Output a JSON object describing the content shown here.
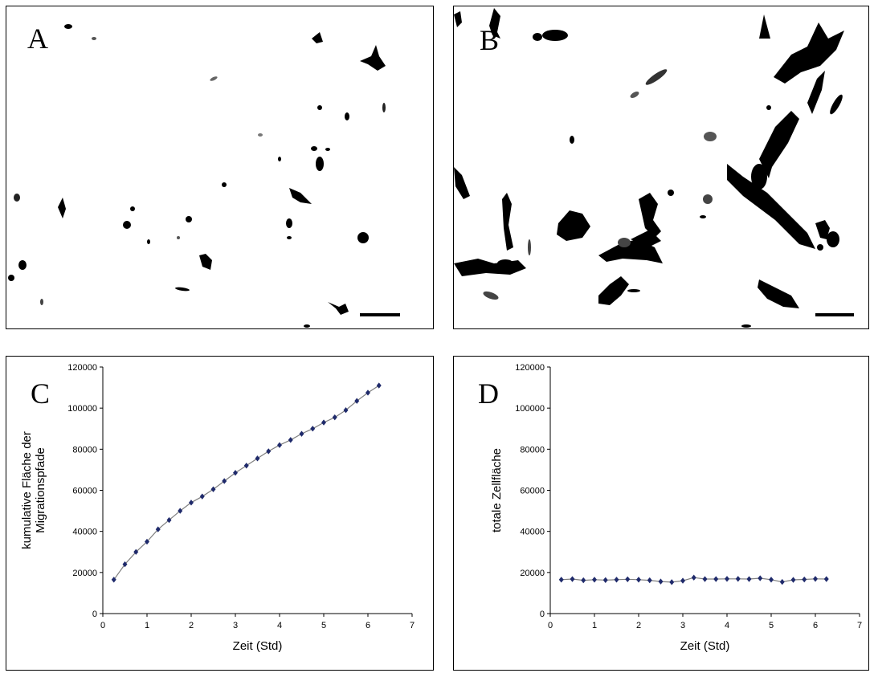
{
  "panels": {
    "A": {
      "letter": "A",
      "kind": "micrograph",
      "content": "sparse cells"
    },
    "B": {
      "letter": "B",
      "kind": "micrograph",
      "content": "cumulative migration paths"
    },
    "C": {
      "letter": "C"
    },
    "D": {
      "letter": "D"
    }
  },
  "chart_data": [
    {
      "panel": "C",
      "type": "line",
      "title": "",
      "xlabel": "Zeit (Std)",
      "ylabel_lines": [
        "kumulative Fläche der",
        "Migrationspfade"
      ],
      "xlim": [
        0,
        7
      ],
      "ylim": [
        0,
        120000
      ],
      "xticks": [
        0,
        1,
        2,
        3,
        4,
        5,
        6,
        7
      ],
      "yticks": [
        0,
        20000,
        40000,
        60000,
        80000,
        100000,
        120000
      ],
      "grid": false,
      "series": [
        {
          "line_color": "#7f7f7f",
          "marker_color": "#1f2a6b",
          "x": [
            0.25,
            0.5,
            0.75,
            1.0,
            1.25,
            1.5,
            1.75,
            2.0,
            2.25,
            2.5,
            2.75,
            3.0,
            3.25,
            3.5,
            3.75,
            4.0,
            4.25,
            4.5,
            4.75,
            5.0,
            5.25,
            5.5,
            5.75,
            6.0,
            6.25
          ],
          "y": [
            16500,
            24000,
            30000,
            35000,
            41000,
            45500,
            50000,
            54000,
            57000,
            60500,
            64500,
            68500,
            72000,
            75500,
            79000,
            82000,
            84500,
            87500,
            90000,
            93000,
            95500,
            99000,
            103500,
            107500,
            111000
          ]
        }
      ]
    },
    {
      "panel": "D",
      "type": "line",
      "title": "",
      "xlabel": "Zeit (Std)",
      "ylabel_lines": [
        "totale Zellfläche"
      ],
      "xlim": [
        0,
        7
      ],
      "ylim": [
        0,
        120000
      ],
      "xticks": [
        0,
        1,
        2,
        3,
        4,
        5,
        6,
        7
      ],
      "yticks": [
        0,
        20000,
        40000,
        60000,
        80000,
        100000,
        120000
      ],
      "grid": false,
      "series": [
        {
          "line_color": "#7f7f7f",
          "marker_color": "#1f2a6b",
          "x": [
            0.25,
            0.5,
            0.75,
            1.0,
            1.25,
            1.5,
            1.75,
            2.0,
            2.25,
            2.5,
            2.75,
            3.0,
            3.25,
            3.5,
            3.75,
            4.0,
            4.25,
            4.5,
            4.75,
            5.0,
            5.25,
            5.5,
            5.75,
            6.0,
            6.25
          ],
          "y": [
            16500,
            16800,
            16200,
            16500,
            16300,
            16500,
            16700,
            16500,
            16200,
            15600,
            15300,
            16000,
            17500,
            16800,
            16800,
            16900,
            16900,
            16800,
            17200,
            16500,
            15400,
            16400,
            16600,
            16900,
            16800
          ]
        }
      ]
    }
  ]
}
